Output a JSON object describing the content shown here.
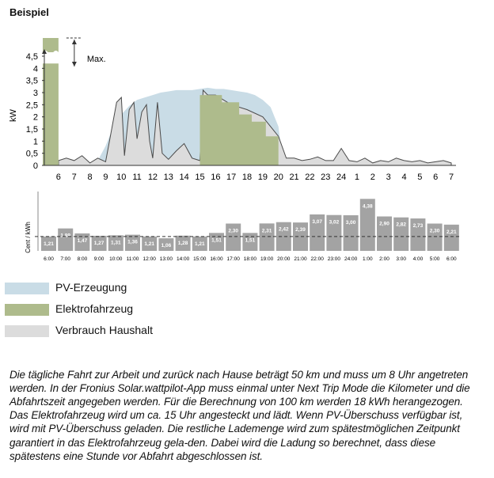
{
  "heading": "Beispiel",
  "legend": [
    {
      "label": "PV-Erzeugung",
      "color": "#c9dce6"
    },
    {
      "label": "Elektrofahrzeug",
      "color": "#aebb8c"
    },
    {
      "label": "Verbrauch Haushalt",
      "color": "#dcdcdc"
    }
  ],
  "description": "Die tägliche Fahrt zur Arbeit und zurück nach Hause beträgt 50 km und muss um 8 Uhr angetreten werden. In der Fronius Solar.wattpilot-App muss einmal unter Next Trip Mode die Kilometer und die Abfahrtszeit angegeben werden. Für die Berechnung von 100 km werden 18 kWh herangezogen. Das Elektrofahrzeug wird um ca. 15 Uhr angesteckt und lädt. Wenn PV-Überschuss verfügbar ist, wird mit PV-Überschuss geladen. Die restliche Lademenge wird zum spätestmöglichen Zeitpunkt garantiert in das Elektrofahrzeug gela-den. Dabei wird die Ladung so berechnet, dass diese spätestens eine Stunde vor Abfahrt abgeschlossen ist.",
  "chart_data": [
    {
      "type": "area",
      "ylabel": "kW",
      "ylim": [
        0,
        4.5
      ],
      "yticks": [
        "0",
        "0,5",
        "1",
        "1,5",
        "2",
        "2,5",
        "3",
        "3,5",
        "4",
        "4,5"
      ],
      "ytick_values": [
        0,
        0.5,
        1,
        1.5,
        2,
        2.5,
        3,
        3.5,
        4,
        4.5
      ],
      "xticks": [
        "6",
        "7",
        "8",
        "9",
        "10",
        "11",
        "12",
        "13",
        "14",
        "15",
        "16",
        "17",
        "18",
        "19",
        "20",
        "21",
        "22",
        "23",
        "24",
        "1",
        "2",
        "3",
        "4",
        "5",
        "6",
        "7"
      ],
      "max_label": "Max.",
      "series": [
        {
          "name": "PV-Erzeugung",
          "color": "#c9dce6",
          "x": [
            6,
            7,
            8,
            8.5,
            9,
            9.5,
            10,
            10.5,
            11,
            11.5,
            12,
            12.5,
            13,
            13.5,
            14,
            14.5,
            15,
            15.5,
            16,
            16.5,
            17,
            17.5,
            18,
            18.5,
            19,
            19.5,
            20,
            20.3
          ],
          "values": [
            0,
            0,
            0.05,
            0.2,
            0.8,
            1.6,
            2.1,
            2.45,
            2.7,
            2.8,
            2.9,
            3.0,
            3.05,
            3.1,
            3.1,
            3.1,
            3.15,
            3.2,
            3.15,
            3.15,
            3.1,
            3.05,
            3.0,
            2.9,
            2.7,
            2.4,
            1.6,
            0
          ]
        },
        {
          "name": "Elektrofahrzeug",
          "color": "#aebb8c",
          "x": [
            15,
            15,
            16.4,
            16.4,
            17.5,
            17.5,
            18.3,
            18.3,
            19.2,
            19.2,
            20,
            20,
            24,
            5,
            5,
            6,
            6,
            7
          ],
          "values": [
            0,
            2.9,
            2.9,
            2.6,
            2.6,
            2.1,
            2.1,
            1.8,
            1.8,
            1.2,
            1.2,
            0,
            0,
            0,
            4.2,
            4.2,
            0,
            0
          ]
        },
        {
          "name": "Verbrauch Haushalt",
          "color": "#dcdcdc",
          "x": [
            6,
            6.5,
            7,
            7.5,
            8,
            8.5,
            9,
            9.3,
            9.7,
            10,
            10.2,
            10.5,
            10.8,
            11,
            11.3,
            11.6,
            11.8,
            12,
            12.3,
            12.6,
            13,
            13.5,
            14,
            14.5,
            15,
            15.2,
            15.5,
            16,
            17,
            18,
            19,
            19.5,
            20,
            20.5,
            21,
            21.5,
            22,
            22.5,
            23,
            23.5,
            24,
            24.5,
            25,
            25.5,
            26,
            26.5,
            27,
            27.5,
            28,
            28.5,
            29,
            29.5,
            30,
            30.5,
            31
          ],
          "values": [
            0.2,
            0.3,
            0.2,
            0.4,
            0.1,
            0.3,
            0.15,
            1.2,
            2.6,
            2.8,
            0.4,
            2.3,
            2.6,
            1.1,
            2.2,
            2.5,
            1.0,
            0.3,
            2.6,
            0.5,
            0.25,
            0.6,
            0.9,
            0.3,
            0.2,
            3.1,
            2.9,
            2.9,
            2.5,
            2.3,
            2.0,
            1.6,
            1.2,
            0.3,
            0.3,
            0.2,
            0.25,
            0.35,
            0.2,
            0.2,
            0.7,
            0.2,
            0.15,
            0.3,
            0.1,
            0.2,
            0.15,
            0.3,
            0.2,
            0.15,
            0.2,
            0.1,
            0.15,
            0.2,
            0.1
          ]
        }
      ]
    },
    {
      "type": "bar",
      "ylabel": "Cent / kWh",
      "categories": [
        "6:00",
        "7:00",
        "8:00",
        "9:00",
        "10:00",
        "11:00",
        "12:00",
        "13:00",
        "14:00",
        "15:00",
        "16:00",
        "17:00",
        "18:00",
        "19:00",
        "20:00",
        "21:00",
        "22:00",
        "23:00",
        "24:00",
        "1:00",
        "2:00",
        "3:00",
        "4:00",
        "5:00",
        "6:00"
      ],
      "values": [
        1.21,
        1.89,
        1.47,
        1.27,
        1.31,
        1.36,
        1.21,
        1.06,
        1.28,
        1.21,
        1.51,
        2.3,
        1.51,
        2.31,
        2.42,
        2.39,
        3.07,
        3.02,
        3.0,
        4.38,
        2.9,
        2.82,
        2.73,
        2.3,
        2.21
      ],
      "labels": [
        "1,21",
        "1,89",
        "1,47",
        "1,27",
        "1,31",
        "1,36",
        "1,21",
        "1,06",
        "1,28",
        "1,21",
        "1,51",
        "2,30",
        "1,51",
        "2,31",
        "2,42",
        "2,39",
        "3,07",
        "3,02",
        "3,00",
        "4,38",
        "2,90",
        "2,82",
        "2,73",
        "2,30",
        "2,21"
      ],
      "bar_color": "#a3a3a3",
      "ylim": [
        0,
        4.8
      ]
    }
  ]
}
